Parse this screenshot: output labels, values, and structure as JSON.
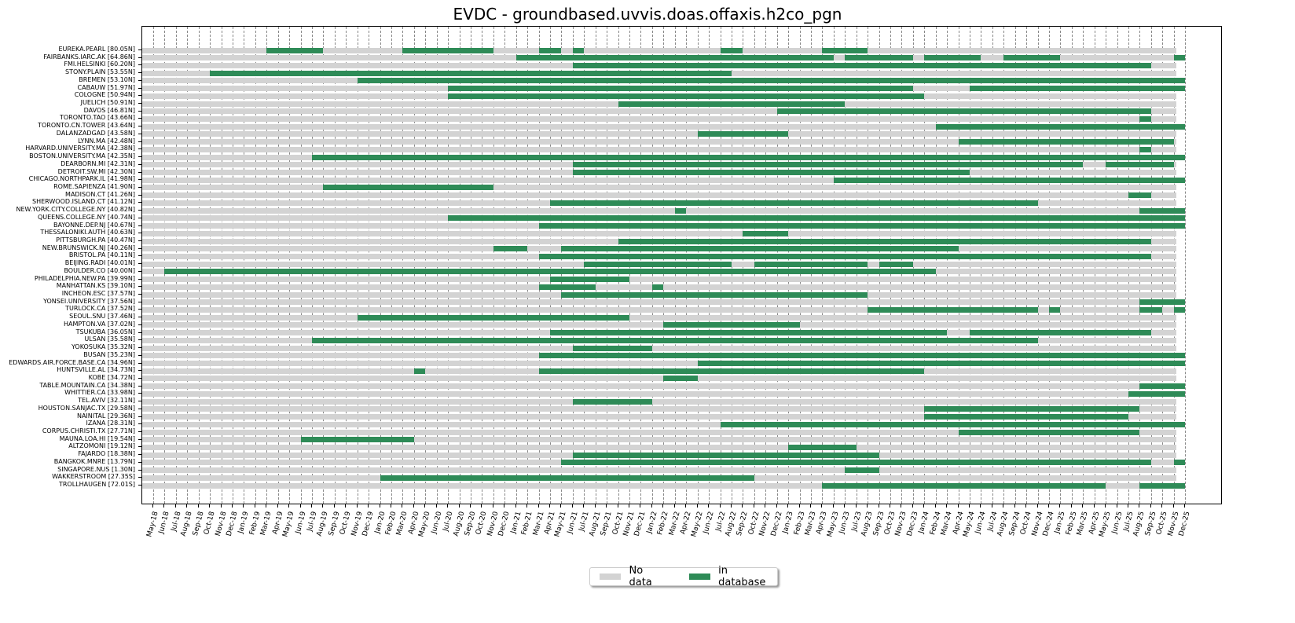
{
  "chart_data": {
    "type": "timeline",
    "title": "EVDC - groundbased.uvvis.doas.offaxis.h2co_pgn",
    "xlabel": "",
    "ylabel": "",
    "grid": "vertical dashed, monthly",
    "legend_position": "bottom center",
    "legend": [
      {
        "label": "No data",
        "color": "#d3d3d3"
      },
      {
        "label": "in database",
        "color": "#2e8b57"
      }
    ],
    "months": [
      "May-18",
      "Jun-18",
      "Jul-18",
      "Aug-18",
      "Sep-18",
      "Oct-18",
      "Nov-18",
      "Dec-18",
      "Jan-19",
      "Feb-19",
      "Mar-19",
      "Apr-19",
      "May-19",
      "Jun-19",
      "Jul-19",
      "Aug-19",
      "Sep-19",
      "Oct-19",
      "Nov-19",
      "Dec-19",
      "Jan-20",
      "Feb-20",
      "Mar-20",
      "Apr-20",
      "May-20",
      "Jun-20",
      "Jul-20",
      "Aug-20",
      "Sep-20",
      "Oct-20",
      "Nov-20",
      "Dec-20",
      "Jan-21",
      "Feb-21",
      "Mar-21",
      "Apr-21",
      "May-21",
      "Jun-21",
      "Jul-21",
      "Aug-21",
      "Sep-21",
      "Oct-21",
      "Nov-21",
      "Dec-21",
      "Jan-22",
      "Feb-22",
      "Mar-22",
      "Apr-22",
      "May-22",
      "Jun-22",
      "Jul-22",
      "Aug-22",
      "Sep-22",
      "Oct-22",
      "Nov-22",
      "Dec-22",
      "Jan-23",
      "Feb-23",
      "Mar-23",
      "Apr-23",
      "May-23",
      "Jun-23",
      "Jul-23",
      "Aug-23",
      "Sep-23",
      "Oct-23",
      "Nov-23",
      "Dec-23",
      "Jan-24",
      "Feb-24",
      "Mar-24",
      "Apr-24",
      "May-24",
      "Jun-24",
      "Jul-24",
      "Aug-24",
      "Sep-24",
      "Oct-24",
      "Nov-24",
      "Dec-24",
      "Jan-25",
      "Feb-25",
      "Mar-25",
      "Apr-25",
      "May-25",
      "Jun-25",
      "Jul-25",
      "Aug-25",
      "Sep-25",
      "Oct-25",
      "Nov-25",
      "Dec-25"
    ],
    "stations": [
      {
        "name": "EUREKA.PEARL [80.05N]",
        "segments": [
          [
            10,
            15
          ],
          [
            22,
            30
          ],
          [
            34,
            36
          ],
          [
            37,
            38
          ],
          [
            50,
            52
          ],
          [
            59,
            63
          ]
        ]
      },
      {
        "name": "FAIRBANKS.IARC.AK [64.86N]",
        "segments": [
          [
            32,
            60
          ],
          [
            61,
            67
          ],
          [
            68,
            73
          ],
          [
            75,
            80
          ],
          [
            90,
            91
          ]
        ]
      },
      {
        "name": "FMI.HELSINKI [60.20N]",
        "segments": [
          [
            37,
            88
          ]
        ]
      },
      {
        "name": "STONY.PLAIN [53.55N]",
        "segments": [
          [
            5,
            51
          ]
        ]
      },
      {
        "name": "BREMEN [53.10N]",
        "segments": [
          [
            18,
            91
          ]
        ]
      },
      {
        "name": "CABAUW [51.97N]",
        "segments": [
          [
            26,
            67
          ],
          [
            72,
            91
          ]
        ]
      },
      {
        "name": "COLOGNE [50.94N]",
        "segments": [
          [
            26,
            68
          ]
        ]
      },
      {
        "name": "JUELICH [50.91N]",
        "segments": [
          [
            41,
            61
          ]
        ]
      },
      {
        "name": "DAVOS [46.81N]",
        "segments": [
          [
            55,
            88
          ]
        ]
      },
      {
        "name": "TORONTO.TAO [43.66N]",
        "segments": [
          [
            87,
            88
          ]
        ]
      },
      {
        "name": "TORONTO.CN.TOWER [43.64N]",
        "segments": [
          [
            69,
            91
          ]
        ]
      },
      {
        "name": "DALANZADGAD [43.58N]",
        "segments": [
          [
            48,
            56
          ]
        ]
      },
      {
        "name": "LYNN.MA [42.48N]",
        "segments": [
          [
            71,
            90
          ]
        ]
      },
      {
        "name": "HARVARD.UNIVERSITY.MA [42.38N]",
        "segments": [
          [
            87,
            88
          ]
        ]
      },
      {
        "name": "BOSTON.UNIVERSITY.MA [42.35N]",
        "segments": [
          [
            14,
            91
          ]
        ]
      },
      {
        "name": "DEARBORN.MI [42.31N]",
        "segments": [
          [
            37,
            82
          ],
          [
            84,
            90
          ]
        ]
      },
      {
        "name": "DETROIT.SW.MI [42.30N]",
        "segments": [
          [
            37,
            72
          ]
        ]
      },
      {
        "name": "CHICAGO.NORTHPARK.IL [41.98N]",
        "segments": [
          [
            60,
            91
          ]
        ]
      },
      {
        "name": "ROME.SAPIENZA [41.90N]",
        "segments": [
          [
            15,
            30
          ]
        ]
      },
      {
        "name": "MADISON.CT [41.26N]",
        "segments": [
          [
            86,
            88
          ]
        ]
      },
      {
        "name": "SHERWOOD.ISLAND.CT [41.12N]",
        "segments": [
          [
            35,
            78
          ]
        ]
      },
      {
        "name": "NEW.YORK.CITY.COLLEGE.NY [40.82N]",
        "segments": [
          [
            46,
            47
          ],
          [
            87,
            91
          ]
        ]
      },
      {
        "name": "QUEENS.COLLEGE.NY [40.74N]",
        "segments": [
          [
            26,
            91
          ]
        ]
      },
      {
        "name": "BAYONNE.DEP.NJ [40.67N]",
        "segments": [
          [
            34,
            91
          ]
        ]
      },
      {
        "name": "THESSALONIKI.AUTH [40.63N]",
        "segments": [
          [
            52,
            56
          ]
        ]
      },
      {
        "name": "PITTSBURGH.PA [40.47N]",
        "segments": [
          [
            41,
            88
          ]
        ]
      },
      {
        "name": "NEW.BRUNSWICK.NJ [40.26N]",
        "segments": [
          [
            30,
            33
          ],
          [
            36,
            71
          ]
        ]
      },
      {
        "name": "BRISTOL.PA [40.11N]",
        "segments": [
          [
            34,
            88
          ]
        ]
      },
      {
        "name": "BEIJING.RADI [40.01N]",
        "segments": [
          [
            38,
            51
          ],
          [
            53,
            63
          ],
          [
            64,
            67
          ]
        ]
      },
      {
        "name": "BOULDER.CO [40.00N]",
        "segments": [
          [
            1,
            69
          ]
        ]
      },
      {
        "name": "PHILADELPHIA.NEW.PA [39.99N]",
        "segments": [
          [
            35,
            42
          ]
        ]
      },
      {
        "name": "MANHATTAN.KS [39.10N]",
        "segments": [
          [
            34,
            39
          ],
          [
            44,
            45
          ]
        ]
      },
      {
        "name": "INCHEON.ESC [37.57N]",
        "segments": [
          [
            36,
            63
          ]
        ]
      },
      {
        "name": "YONSEI.UNIVERSITY [37.56N]",
        "segments": [
          [
            87,
            91
          ]
        ]
      },
      {
        "name": "TURLOCK.CA [37.52N]",
        "segments": [
          [
            63,
            78
          ],
          [
            79,
            80
          ],
          [
            87,
            89
          ],
          [
            90,
            91
          ]
        ]
      },
      {
        "name": "SEOUL.SNU [37.46N]",
        "segments": [
          [
            18,
            42
          ]
        ]
      },
      {
        "name": "HAMPTON.VA [37.02N]",
        "segments": [
          [
            45,
            57
          ]
        ]
      },
      {
        "name": "TSUKUBA [36.05N]",
        "segments": [
          [
            35,
            70
          ],
          [
            72,
            88
          ]
        ]
      },
      {
        "name": "ULSAN [35.58N]",
        "segments": [
          [
            14,
            78
          ]
        ]
      },
      {
        "name": "YOKOSUKA [35.32N]",
        "segments": [
          [
            37,
            44
          ]
        ]
      },
      {
        "name": "BUSAN [35.23N]",
        "segments": [
          [
            34,
            91
          ]
        ]
      },
      {
        "name": "EDWARDS.AIR.FORCE.BASE.CA [34.96N]",
        "segments": [
          [
            48,
            91
          ]
        ]
      },
      {
        "name": "HUNTSVILLE.AL [34.73N]",
        "segments": [
          [
            23,
            24
          ],
          [
            34,
            68
          ]
        ]
      },
      {
        "name": "KOBE [34.72N]",
        "segments": [
          [
            45,
            48
          ]
        ]
      },
      {
        "name": "TABLE.MOUNTAIN.CA [34.38N]",
        "segments": [
          [
            87,
            91
          ]
        ]
      },
      {
        "name": "WHITTIER.CA [33.98N]",
        "segments": [
          [
            86,
            91
          ]
        ]
      },
      {
        "name": "TEL.AVIV [32.11N]",
        "segments": [
          [
            37,
            44
          ]
        ]
      },
      {
        "name": "HOUSTON.SANJAC.TX [29.58N]",
        "segments": [
          [
            68,
            87
          ]
        ]
      },
      {
        "name": "NAINITAL [29.36N]",
        "segments": [
          [
            68,
            86
          ]
        ]
      },
      {
        "name": "IZANA [28.31N]",
        "segments": [
          [
            50,
            91
          ]
        ]
      },
      {
        "name": "CORPUS.CHRISTI.TX [27.71N]",
        "segments": [
          [
            71,
            87
          ]
        ]
      },
      {
        "name": "MAUNA.LOA.HI [19.54N]",
        "segments": [
          [
            13,
            23
          ]
        ]
      },
      {
        "name": "ALTZOMONI [19.12N]",
        "segments": [
          [
            56,
            62
          ]
        ]
      },
      {
        "name": "FAJARDO [18.38N]",
        "segments": [
          [
            37,
            64
          ]
        ]
      },
      {
        "name": "BANGKOK.MNRE [13.79N]",
        "segments": [
          [
            36,
            88
          ],
          [
            90,
            91
          ]
        ]
      },
      {
        "name": "SINGAPORE.NUS [1.30N]",
        "segments": [
          [
            61,
            64
          ]
        ]
      },
      {
        "name": "WAKKERSTROOM [27.35S]",
        "segments": [
          [
            20,
            53
          ]
        ]
      },
      {
        "name": "TROLLHAUGEN [72.01S]",
        "segments": [
          [
            59,
            84
          ],
          [
            87,
            91
          ]
        ]
      }
    ]
  }
}
